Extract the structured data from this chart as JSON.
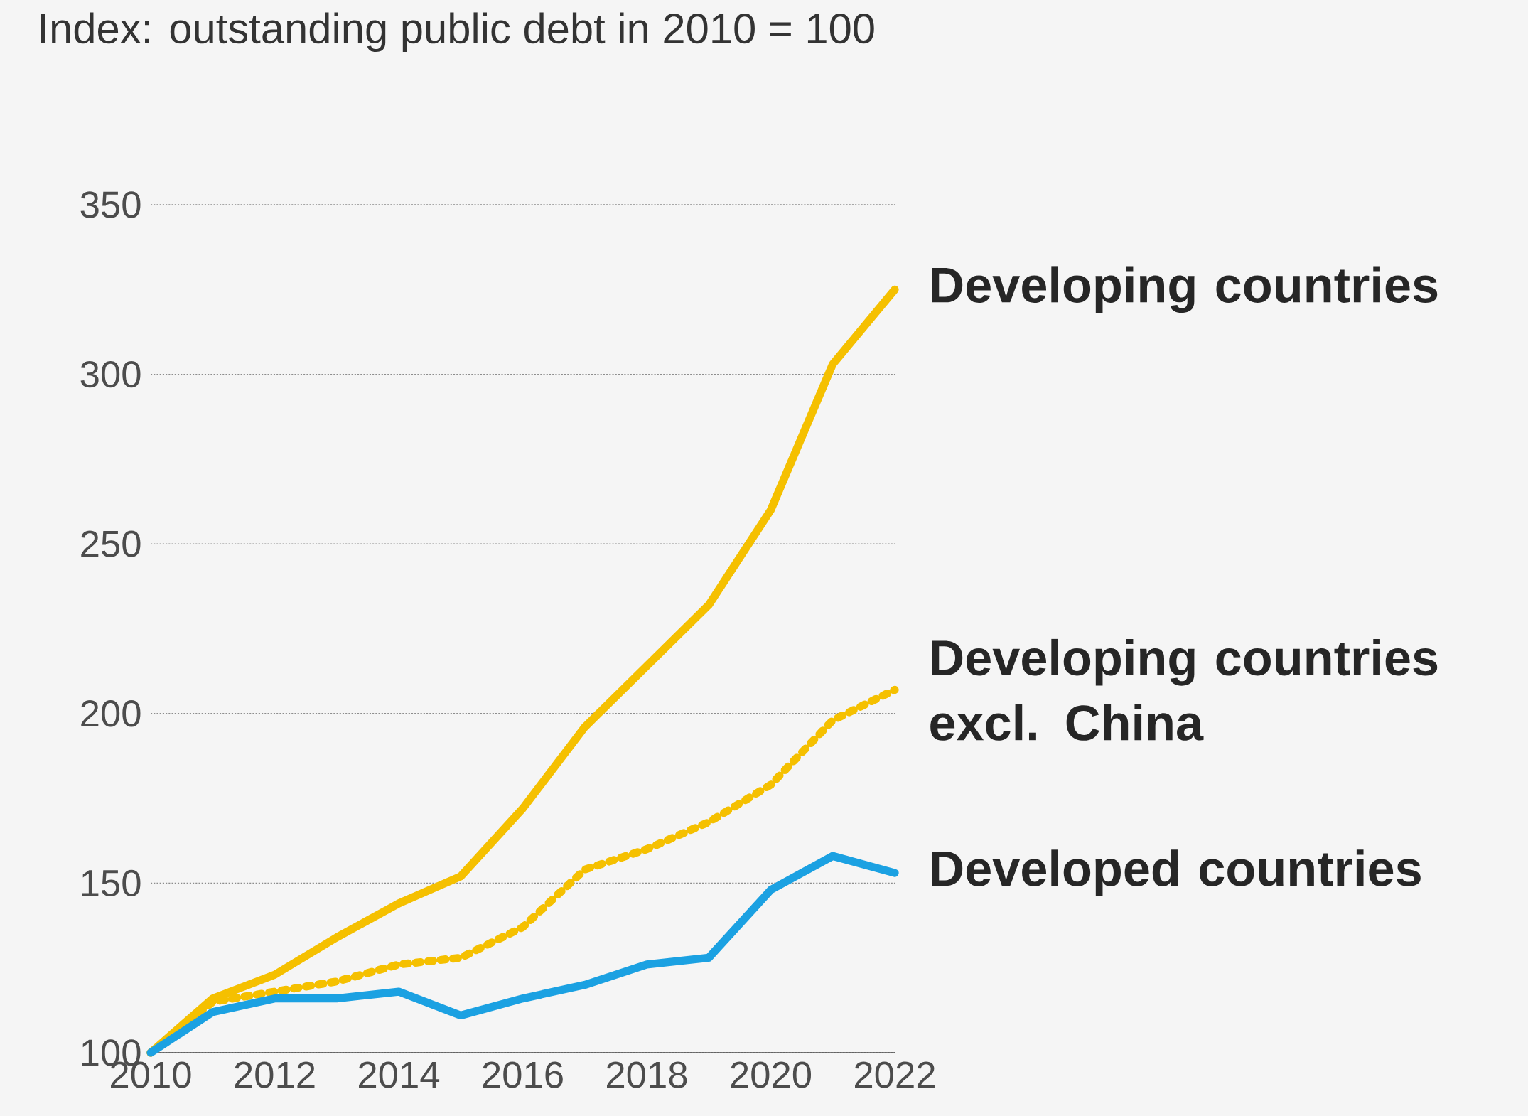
{
  "chart_data": {
    "type": "line",
    "title": "Index: outstanding public debt in 2010 = 100",
    "x": [
      2010,
      2011,
      2012,
      2013,
      2014,
      2015,
      2016,
      2017,
      2018,
      2019,
      2020,
      2021,
      2022
    ],
    "series": [
      {
        "name": "Developing countries",
        "color": "#f5c000",
        "values": [
          100,
          116,
          123,
          134,
          144,
          152,
          172,
          196,
          214,
          232,
          260,
          303,
          325
        ]
      },
      {
        "name": "**Developing countries** excl. China",
        "color": "#f5c000",
        "line_style": "dotted",
        "values": [
          100,
          115,
          118,
          121,
          126,
          128,
          137,
          154,
          160,
          168,
          179,
          198,
          207
        ]
      },
      {
        "name": "Developed countries",
        "color": "#1ba1e2",
        "values": [
          100,
          112,
          116,
          116,
          118,
          111,
          116,
          120,
          126,
          128,
          148,
          158,
          153
        ]
      }
    ],
    "xlim": [
      2010,
      2022
    ],
    "xticks": [
      2010,
      2012,
      2014,
      2016,
      2018,
      2020,
      2022
    ],
    "ylim": [
      100,
      350
    ],
    "yticks": [
      100,
      150,
      200,
      250,
      300,
      350
    ],
    "grid": "y",
    "legend": false,
    "marker": "none",
    "line_style": "solid"
  }
}
